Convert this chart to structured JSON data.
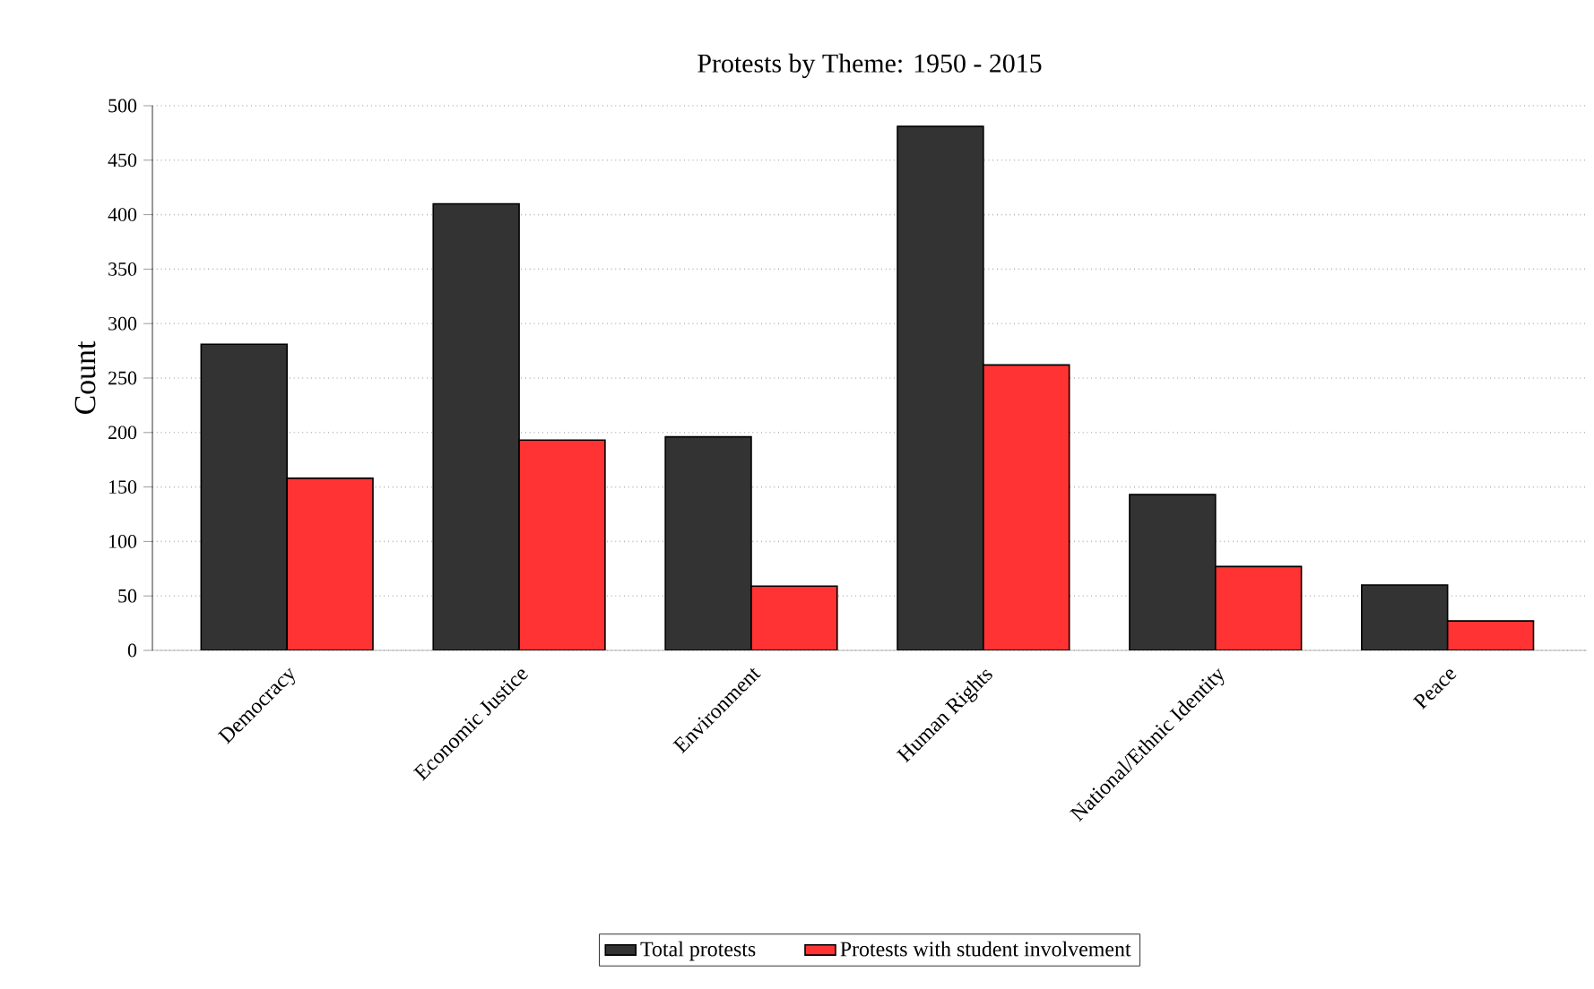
{
  "chart_data": {
    "type": "bar",
    "title": "Protests by Theme: 1950 - 2015",
    "ylabel": "Count",
    "categories": [
      "Democracy",
      "Economic Justice",
      "Environment",
      "Human Rights",
      "National/Ethnic Identity",
      "Peace"
    ],
    "series": [
      {
        "name": "Total protests",
        "color": "#333333",
        "values": [
          281,
          410,
          196,
          481,
          143,
          60
        ]
      },
      {
        "name": "Protests with student involvement",
        "color": "#ff3333",
        "values": [
          158,
          193,
          59,
          262,
          77,
          27
        ]
      }
    ],
    "ylim": [
      0,
      500
    ],
    "yticks": [
      0,
      50,
      100,
      150,
      200,
      250,
      300,
      350,
      400,
      450,
      500
    ],
    "grid": "y",
    "legend": "bottom"
  }
}
